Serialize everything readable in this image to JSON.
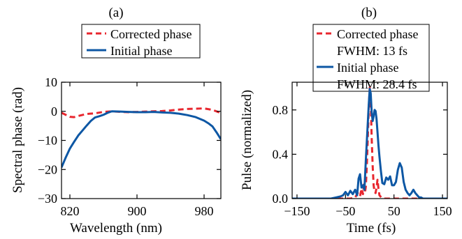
{
  "colors": {
    "corrected": "#e8262e",
    "initial": "#0d57a4"
  },
  "chart_data": [
    {
      "type": "line",
      "panel_label": "(a)",
      "xlabel": "Wavelength (nm)",
      "ylabel": "Spectral phase (rad)",
      "xlim": [
        810,
        1000
      ],
      "ylim": [
        -30,
        10
      ],
      "xticks": [
        820,
        900,
        980
      ],
      "yticks": [
        10,
        0,
        -10,
        -20,
        -30
      ],
      "legend": {
        "placement": "top",
        "frame": true
      },
      "series": [
        {
          "name": "Corrected phase",
          "style": "dashed",
          "color": "#e8262e",
          "x": [
            810,
            815,
            820,
            825,
            830,
            840,
            850,
            860,
            870,
            880,
            890,
            900,
            910,
            920,
            930,
            940,
            950,
            960,
            970,
            980,
            990,
            1000
          ],
          "y": [
            -0.5,
            -1.2,
            -1.9,
            -2.0,
            -1.6,
            -0.9,
            -0.7,
            -0.2,
            0.0,
            -0.2,
            -0.3,
            -0.2,
            -0.1,
            0.0,
            0.1,
            0.3,
            0.6,
            0.8,
            0.9,
            1.0,
            0.5,
            -0.6
          ]
        },
        {
          "name": "Initial phase",
          "style": "solid",
          "color": "#0d57a4",
          "x": [
            810,
            815,
            820,
            825,
            830,
            835,
            840,
            845,
            850,
            855,
            860,
            865,
            870,
            880,
            890,
            900,
            910,
            920,
            930,
            940,
            950,
            960,
            970,
            980,
            985,
            990,
            995,
            1000
          ],
          "y": [
            -19.3,
            -15.9,
            -12.8,
            -10.5,
            -8.3,
            -6.6,
            -4.9,
            -3.3,
            -2.1,
            -1.7,
            -1.2,
            -0.5,
            0.0,
            -0.1,
            -0.2,
            -0.3,
            -0.3,
            -0.2,
            -0.4,
            -0.5,
            -0.8,
            -1.3,
            -2.0,
            -3.2,
            -4.1,
            -5.2,
            -7.3,
            -9.6
          ]
        }
      ]
    },
    {
      "type": "line",
      "panel_label": "(b)",
      "xlabel": "Time (fs)",
      "ylabel": "Pulse (normalized)",
      "xlim": [
        -160,
        160
      ],
      "ylim": [
        0,
        1.05
      ],
      "xticks": [
        -150,
        -50,
        50,
        150
      ],
      "yticks": [
        0.0,
        0.4,
        0.8
      ],
      "legend": {
        "placement": "top",
        "frame": true
      },
      "series": [
        {
          "name": "Corrected phase",
          "annotation": "FWHM: 13 fs",
          "style": "dashed",
          "color": "#e8262e",
          "x": [
            -160,
            -40,
            -30,
            -25,
            -20,
            -17,
            -14,
            -12,
            -10,
            -8,
            -6,
            -4,
            -2,
            0,
            2,
            4,
            6,
            8,
            10,
            12,
            14,
            16,
            18,
            20,
            24,
            30,
            160
          ],
          "y": [
            0,
            0,
            0.01,
            0.05,
            0.02,
            0.09,
            0.04,
            0.14,
            0.05,
            0.11,
            0.3,
            0.55,
            0.82,
            1.0,
            0.88,
            0.55,
            0.3,
            0.12,
            0.06,
            0.05,
            0.1,
            0.17,
            0.09,
            0.03,
            0.01,
            0,
            0
          ]
        },
        {
          "name": "Initial phase",
          "annotation": "FWHM: 28.4 fs",
          "style": "solid",
          "color": "#0d57a4",
          "x": [
            -160,
            -80,
            -70,
            -60,
            -55,
            -50,
            -45,
            -40,
            -35,
            -30,
            -26,
            -23,
            -20,
            -17,
            -14,
            -11,
            -8,
            -5,
            -2,
            0,
            2,
            4,
            6,
            8,
            10,
            12,
            14,
            16,
            18,
            20,
            23,
            26,
            30,
            34,
            38,
            42,
            46,
            50,
            54,
            58,
            62,
            66,
            70,
            74,
            78,
            82,
            86,
            90,
            94,
            98,
            102,
            106,
            110,
            160
          ],
          "y": [
            0,
            0,
            0.01,
            0.02,
            0.03,
            0.06,
            0.03,
            0.07,
            0.04,
            0.08,
            0.03,
            0.18,
            0.22,
            0.1,
            0.12,
            0.08,
            0.35,
            0.6,
            0.85,
            0.99,
            0.95,
            0.78,
            0.7,
            0.74,
            0.8,
            0.79,
            0.72,
            0.6,
            0.48,
            0.38,
            0.25,
            0.14,
            0.13,
            0.19,
            0.17,
            0.2,
            0.12,
            0.12,
            0.15,
            0.26,
            0.32,
            0.28,
            0.15,
            0.08,
            0.05,
            0.03,
            0.05,
            0.08,
            0.05,
            0.03,
            0.01,
            0.01,
            0,
            0
          ]
        }
      ]
    }
  ]
}
